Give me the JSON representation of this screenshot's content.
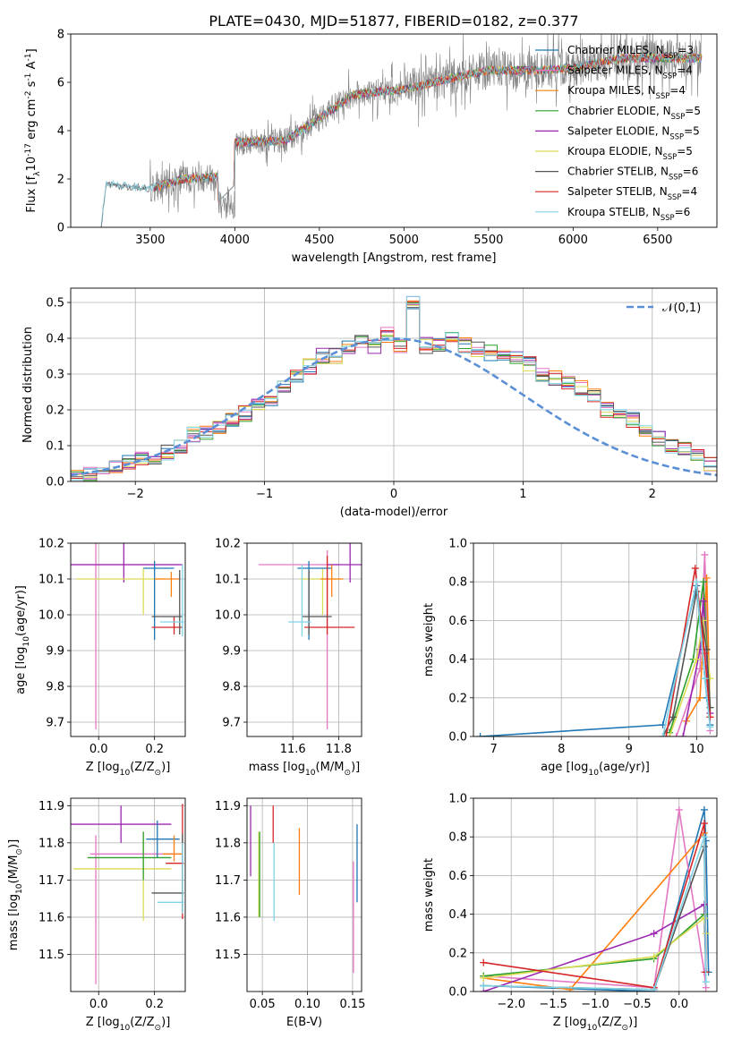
{
  "figure": {
    "title": "PLATE=0430, MJD=51877, FIBERID=0182, z=0.377"
  },
  "colors": {
    "series": [
      "#1f77b4",
      "#e377c2",
      "#ff7f0e",
      "#2ca02c",
      "#9c27b0",
      "#dbdb54",
      "#555555",
      "#d62728",
      "#7fd3e6"
    ],
    "data": "#808080",
    "grid": "#b0b0b0",
    "gaussian": "#5b8fd6"
  },
  "chart_data": [
    {
      "id": "spectrum",
      "type": "line",
      "title": "PLATE=0430, MJD=51877, FIBERID=0182, z=0.377",
      "xlabel": "wavelength [Angstrom, rest frame]",
      "ylabel": "Flux [f$_\\lambda$10$^{-17}$ erg cm$^{-2}$ s$^{-1}$ A$^{-1}$]",
      "xlim": [
        3030,
        6850
      ],
      "ylim": [
        0,
        8
      ],
      "xticks": [
        3500,
        4000,
        4500,
        5000,
        5500,
        6000,
        6500
      ],
      "yticks": [
        0,
        2,
        4,
        6,
        8
      ],
      "grid": false,
      "legend_position": "top-right",
      "data_trend": {
        "x": [
          3210,
          3240,
          3500,
          3700,
          3900,
          4000,
          4300,
          4500,
          4700,
          5000,
          5300,
          5500,
          5800,
          6000,
          6300,
          6700
        ],
        "y": [
          0.0,
          1.8,
          1.6,
          2.0,
          2.1,
          3.5,
          3.6,
          4.5,
          5.5,
          5.7,
          6.2,
          6.5,
          6.5,
          6.6,
          7.0,
          7.0
        ]
      },
      "series": [
        {
          "label": "Chabrier MILES, N$_{SSP}$=3"
        },
        {
          "label": "Salpeter MILES, N$_{SSP}$=4"
        },
        {
          "label": "Kroupa MILES, N$_{SSP}$=4"
        },
        {
          "label": "Chabrier ELODIE, N$_{SSP}$=5"
        },
        {
          "label": "Salpeter ELODIE, N$_{SSP}$=5"
        },
        {
          "label": "Kroupa ELODIE, N$_{SSP}$=5"
        },
        {
          "label": "Chabrier STELIB, N$_{SSP}$=6"
        },
        {
          "label": "Salpeter STELIB, N$_{SSP}$=4"
        },
        {
          "label": "Kroupa STELIB, N$_{SSP}$=6"
        }
      ]
    },
    {
      "id": "residuals",
      "type": "bar",
      "xlabel": "(data-model)/error",
      "ylabel": "Normed distribution",
      "xlim": [
        -2.5,
        2.5
      ],
      "ylim": [
        0,
        0.54
      ],
      "xticks": [
        -2,
        -1,
        0,
        1,
        2
      ],
      "yticks": [
        0.0,
        0.1,
        0.2,
        0.3,
        0.4,
        0.5
      ],
      "grid": true,
      "legend_position": "top-right",
      "legend": "$\\mathcal{N}(0,1)$",
      "bin_width": 0.1,
      "representative": [
        0.01,
        0.02,
        0.03,
        0.04,
        0.05,
        0.06,
        0.06,
        0.08,
        0.1,
        0.13,
        0.14,
        0.15,
        0.17,
        0.19,
        0.21,
        0.23,
        0.26,
        0.3,
        0.32,
        0.35,
        0.35,
        0.37,
        0.39,
        0.38,
        0.41,
        0.38,
        0.5,
        0.38,
        0.38,
        0.4,
        0.38,
        0.37,
        0.36,
        0.35,
        0.34,
        0.33,
        0.3,
        0.29,
        0.28,
        0.26,
        0.24,
        0.2,
        0.19,
        0.17,
        0.14,
        0.12,
        0.1,
        0.09,
        0.07,
        0.05,
        0.04,
        0.04,
        0.04,
        0.05
      ]
    },
    {
      "id": "age_vs_Z",
      "type": "scatter",
      "xlabel": "Z [log$_{10}$(Z/Z$_\\odot$)]",
      "ylabel": "age  [log$_{10}$(age/yr)]",
      "xlim": [
        -0.1,
        0.31
      ],
      "ylim": [
        9.66,
        10.2
      ],
      "xticks": [
        0.0,
        0.2
      ],
      "yticks": [
        9.7,
        9.8,
        9.9,
        10.0,
        10.1,
        10.2
      ],
      "grid": true,
      "points": [
        {
          "x": -0.01,
          "y": 10.14,
          "xerr": [
            0.1,
            0.3
          ],
          "yerr": [
            0.46,
            0.06
          ],
          "c": 1
        },
        {
          "x": 0.09,
          "y": 10.14,
          "xerr": [
            0.2,
            0.21
          ],
          "yerr": [
            0.05,
            0.06
          ],
          "c": 4
        },
        {
          "x": 0.16,
          "y": 10.1,
          "xerr": [
            0.24,
            0.08
          ],
          "yerr": [
            0.1,
            0.03
          ],
          "c": 5
        },
        {
          "x": 0.2,
          "y": 10.13,
          "xerr": [
            0.04,
            0.07
          ],
          "yerr": [
            0.2,
            0.02
          ],
          "c": 0
        },
        {
          "x": 0.26,
          "y": 10.1,
          "xerr": [
            0.06,
            0.03
          ],
          "yerr": [
            0.05,
            0.02
          ],
          "c": 2
        },
        {
          "x": 0.27,
          "y": 9.965,
          "xerr": [
            0.08,
            0.03
          ],
          "yerr": [
            0.02,
            0.03
          ],
          "c": 7
        },
        {
          "x": 0.29,
          "y": 9.995,
          "xerr": [
            0.1,
            0.01
          ],
          "yerr": [
            0.05,
            0.13
          ],
          "c": 6
        },
        {
          "x": 0.3,
          "y": 9.98,
          "xerr": [
            0.08,
            0.005
          ],
          "yerr": [
            0.04,
            0.16
          ],
          "c": 8
        }
      ]
    },
    {
      "id": "age_vs_mass",
      "type": "scatter",
      "xlabel": "mass [log$_{10}$(M/M$_\\odot$)]",
      "ylabel": "",
      "xlim": [
        11.4,
        11.9
      ],
      "ylim": [
        9.66,
        10.2
      ],
      "xticks": [
        11.6,
        11.8
      ],
      "yticks": [
        9.7,
        9.8,
        9.9,
        10.0,
        10.1,
        10.2
      ],
      "grid": true,
      "points": [
        {
          "x": 11.75,
          "y": 10.14,
          "xerr": [
            0.3,
            0.05
          ],
          "yerr": [
            0.46,
            0.04
          ],
          "c": 1
        },
        {
          "x": 11.85,
          "y": 10.14,
          "xerr": [
            0.1,
            0.05
          ],
          "yerr": [
            0.05,
            0.06
          ],
          "c": 4
        },
        {
          "x": 11.73,
          "y": 10.1,
          "xerr": [
            0.1,
            0.08
          ],
          "yerr": [
            0.1,
            0.03
          ],
          "c": 5
        },
        {
          "x": 11.67,
          "y": 10.13,
          "xerr": [
            0.05,
            0.1
          ],
          "yerr": [
            0.2,
            0.02
          ],
          "c": 0
        },
        {
          "x": 11.77,
          "y": 10.1,
          "xerr": [
            0.05,
            0.05
          ],
          "yerr": [
            0.05,
            0.04
          ],
          "c": 2
        },
        {
          "x": 11.75,
          "y": 9.965,
          "xerr": [
            0.1,
            0.12
          ],
          "yerr": [
            0.02,
            0.2
          ],
          "c": 7
        },
        {
          "x": 11.67,
          "y": 9.995,
          "xerr": [
            0.03,
            0.1
          ],
          "yerr": [
            0.05,
            0.13
          ],
          "c": 6
        },
        {
          "x": 11.64,
          "y": 9.98,
          "xerr": [
            0.06,
            0.04
          ],
          "yerr": [
            0.04,
            0.16
          ],
          "c": 8
        }
      ]
    },
    {
      "id": "mass_weight_vs_age",
      "type": "line",
      "xlabel": "age  [log$_{10}$(age/yr)]",
      "ylabel": "mass weight",
      "xlim": [
        6.7,
        10.3
      ],
      "ylim": [
        0,
        1.0
      ],
      "xticks": [
        7,
        8,
        9,
        10
      ],
      "yticks": [
        0.0,
        0.2,
        0.4,
        0.6,
        0.8,
        1.0
      ],
      "grid": true,
      "series": [
        {
          "x": [
            6.8,
            9.5,
            10.0,
            10.15,
            10.2
          ],
          "y": [
            0.0,
            0.06,
            0.78,
            0.2,
            0.06
          ],
          "c": 0
        },
        {
          "x": [
            9.7,
            10.05,
            10.12,
            10.2
          ],
          "y": [
            0.0,
            0.35,
            0.94,
            0.03
          ],
          "c": 1
        },
        {
          "x": [
            9.85,
            10.05,
            10.15,
            10.2
          ],
          "y": [
            0.08,
            0.2,
            0.82,
            0.1
          ],
          "c": 2
        },
        {
          "x": [
            9.6,
            9.95,
            10.1,
            10.2
          ],
          "y": [
            0.02,
            0.4,
            0.8,
            0.15
          ],
          "c": 3
        },
        {
          "x": [
            9.8,
            10.05,
            10.1,
            10.2
          ],
          "y": [
            0.0,
            0.45,
            0.7,
            0.12
          ],
          "c": 4
        },
        {
          "x": [
            9.6,
            10.0,
            10.1,
            10.2
          ],
          "y": [
            0.0,
            0.4,
            0.6,
            0.3
          ],
          "c": 5
        },
        {
          "x": [
            9.5,
            9.65,
            10.0,
            10.15,
            10.2
          ],
          "y": [
            0.0,
            0.1,
            0.75,
            0.45,
            0.15
          ],
          "c": 6
        },
        {
          "x": [
            9.55,
            9.98,
            10.12,
            10.2
          ],
          "y": [
            0.0,
            0.87,
            0.43,
            0.1
          ],
          "c": 7
        },
        {
          "x": [
            9.5,
            10.0,
            10.12,
            10.2
          ],
          "y": [
            0.0,
            0.8,
            0.3,
            0.05
          ],
          "c": 8
        }
      ]
    },
    {
      "id": "mass_vs_Z",
      "type": "scatter",
      "xlabel": "Z [log$_{10}$(Z/Z$_\\odot$)]",
      "ylabel": "mass [log$_{10}$(M/M$_\\odot$)]",
      "xlim": [
        -0.1,
        0.31
      ],
      "ylim": [
        11.4,
        11.92
      ],
      "xticks": [
        0.0,
        0.2
      ],
      "yticks": [
        11.5,
        11.6,
        11.7,
        11.8,
        11.9
      ],
      "grid": true,
      "points": [
        {
          "x": -0.01,
          "y": 11.77,
          "xerr": [
            0.02,
            0.3
          ],
          "yerr": [
            0.35,
            0.05
          ],
          "c": 1
        },
        {
          "x": 0.08,
          "y": 11.85,
          "xerr": [
            0.18,
            0.18
          ],
          "yerr": [
            0.05,
            0.05
          ],
          "c": 4
        },
        {
          "x": 0.16,
          "y": 11.73,
          "xerr": [
            0.25,
            0.1
          ],
          "yerr": [
            0.14,
            0.1
          ],
          "c": 5
        },
        {
          "x": 0.21,
          "y": 11.81,
          "xerr": [
            0.04,
            0.08
          ],
          "yerr": [
            0.05,
            0.05
          ],
          "c": 0
        },
        {
          "x": 0.27,
          "y": 11.77,
          "xerr": [
            0.04,
            0.03
          ],
          "yerr": [
            0.02,
            0.05
          ],
          "c": 2
        },
        {
          "x": 0.3,
          "y": 11.745,
          "xerr": [
            0.06,
            0.005
          ],
          "yerr": [
            0.15,
            0.16
          ],
          "c": 7
        },
        {
          "x": 0.3,
          "y": 11.665,
          "xerr": [
            0.11,
            0.005
          ],
          "yerr": [
            0.05,
            0.16
          ],
          "c": 6
        },
        {
          "x": 0.3,
          "y": 11.64,
          "xerr": [
            0.09,
            0.005
          ],
          "yerr": [
            0.03,
            0.16
          ],
          "c": 8
        },
        {
          "x": 0.16,
          "y": 11.76,
          "xerr": [
            0.2,
            0.1
          ],
          "yerr": [
            0.06,
            0.07
          ],
          "c": 3
        }
      ]
    },
    {
      "id": "mass_vs_EBV",
      "type": "scatter",
      "xlabel": "E(B-V)",
      "ylabel": "",
      "xlim": [
        0.033,
        0.16
      ],
      "ylim": [
        11.4,
        11.92
      ],
      "xticks": [
        0.05,
        0.1,
        0.15
      ],
      "yticks": [
        11.5,
        11.6,
        11.7,
        11.8,
        11.9
      ],
      "grid": true,
      "points": [
        {
          "x": 0.037,
          "y": 11.81,
          "yerr": [
            0.1,
            0.09
          ],
          "c": 4
        },
        {
          "x": 0.046,
          "y": 11.74,
          "yerr": [
            0.14,
            0.09
          ],
          "c": 5
        },
        {
          "x": 0.047,
          "y": 11.76,
          "yerr": [
            0.16,
            0.07
          ],
          "c": 3
        },
        {
          "x": 0.062,
          "y": 11.85,
          "yerr": [
            0.05,
            0.05
          ],
          "c": 7
        },
        {
          "x": 0.063,
          "y": 11.72,
          "yerr": [
            0.13,
            0.08
          ],
          "c": 8
        },
        {
          "x": 0.091,
          "y": 11.76,
          "yerr": [
            0.1,
            0.08
          ],
          "c": 2
        },
        {
          "x": 0.151,
          "y": 11.7,
          "yerr": [
            0.25,
            0.05
          ],
          "c": 1
        },
        {
          "x": 0.155,
          "y": 11.73,
          "yerr": [
            0.09,
            0.12
          ],
          "c": 0
        }
      ]
    },
    {
      "id": "mass_weight_vs_Z",
      "type": "line",
      "xlabel": "Z [log$_{10}$(Z/Z$_\\odot$)]",
      "ylabel": "mass weight",
      "xlim": [
        -2.45,
        0.45
      ],
      "ylim": [
        0,
        1.0
      ],
      "xticks": [
        -2.0,
        -1.5,
        -1.0,
        -0.5,
        0.0
      ],
      "yticks": [
        0.0,
        0.2,
        0.4,
        0.6,
        0.8,
        1.0
      ],
      "grid": true,
      "series": [
        {
          "x": [
            -2.33,
            -0.3,
            0.3,
            0.32,
            0.35
          ],
          "y": [
            0.03,
            0.0,
            0.94,
            0.78,
            0.1
          ],
          "c": 0
        },
        {
          "x": [
            -2.33,
            -0.3,
            0.0,
            0.3,
            0.32
          ],
          "y": [
            0.08,
            0.02,
            0.94,
            0.1,
            0.02
          ],
          "c": 1
        },
        {
          "x": [
            -2.33,
            -1.3,
            0.3,
            0.32
          ],
          "y": [
            0.07,
            0.01,
            0.82,
            0.1
          ],
          "c": 2
        },
        {
          "x": [
            -2.33,
            -0.3,
            0.3,
            0.32
          ],
          "y": [
            0.08,
            0.17,
            0.4,
            0.1
          ],
          "c": 3
        },
        {
          "x": [
            -2.33,
            -0.3,
            0.3,
            0.32
          ],
          "y": [
            0.0,
            0.3,
            0.45,
            0.1
          ],
          "c": 4
        },
        {
          "x": [
            -2.33,
            -0.3,
            0.3,
            0.32
          ],
          "y": [
            0.07,
            0.18,
            0.38,
            0.3
          ],
          "c": 5
        },
        {
          "x": [
            -2.33,
            -0.3,
            0.3,
            0.32
          ],
          "y": [
            0.03,
            0.01,
            0.75,
            0.1
          ],
          "c": 6
        },
        {
          "x": [
            -2.33,
            -0.3,
            0.3,
            0.32
          ],
          "y": [
            0.15,
            0.02,
            0.87,
            0.1
          ],
          "c": 7
        },
        {
          "x": [
            -2.33,
            -0.3,
            0.3,
            0.32
          ],
          "y": [
            0.03,
            0.01,
            0.8,
            0.05
          ],
          "c": 8
        }
      ]
    }
  ]
}
